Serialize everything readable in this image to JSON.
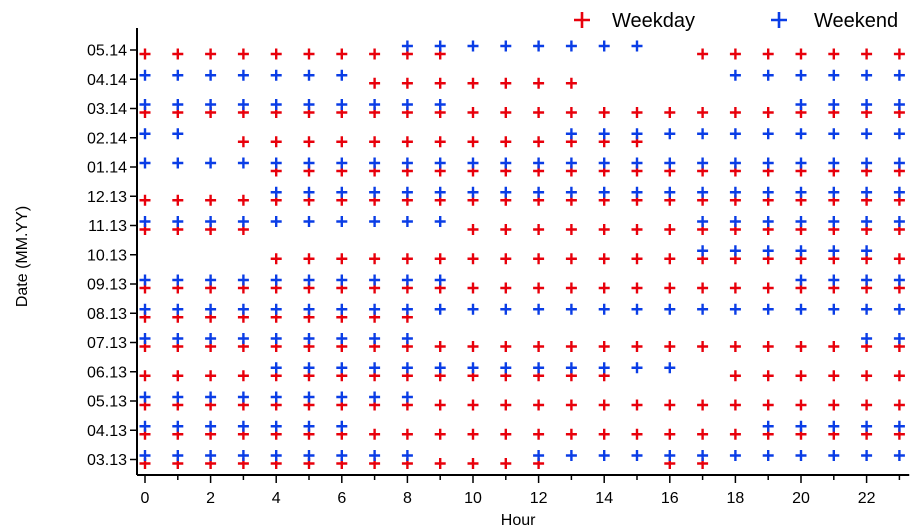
{
  "chart_data": {
    "type": "scatter",
    "title": "",
    "xlabel": "Hour",
    "ylabel": "Date (MM.YY)",
    "xlim": [
      -0.3,
      23.3
    ],
    "x_ticks": [
      0,
      2,
      4,
      6,
      8,
      10,
      12,
      14,
      16,
      18,
      20,
      22
    ],
    "categories": [
      "03.13",
      "04.13",
      "05.13",
      "06.13",
      "07.13",
      "08.13",
      "09.13",
      "10.13",
      "11.13",
      "12.13",
      "01.14",
      "02.14",
      "03.14",
      "04.14",
      "05.14"
    ],
    "legend": {
      "position": "top-right",
      "entries": [
        "Weekday",
        "Weekend"
      ]
    },
    "grid": false,
    "colors": {
      "Weekday": "#e8000b",
      "Weekend": "#0a3de6"
    },
    "series": [
      {
        "name": "Weekday",
        "marker": "+",
        "rows": [
          {
            "date": "03.13",
            "x": [
              0,
              1,
              2,
              3,
              4,
              5,
              6,
              7,
              8,
              9,
              10,
              11,
              12,
              16,
              17
            ]
          },
          {
            "date": "04.13",
            "x": [
              0,
              1,
              2,
              3,
              4,
              5,
              6,
              7,
              8,
              9,
              10,
              11,
              12,
              13,
              14,
              15,
              16,
              17,
              18,
              19,
              20,
              21,
              22,
              23
            ]
          },
          {
            "date": "05.13",
            "x": [
              0,
              1,
              2,
              3,
              4,
              5,
              6,
              7,
              8,
              9,
              10,
              11,
              12,
              13,
              14,
              15,
              16,
              17,
              18,
              19,
              20,
              21,
              22,
              23
            ]
          },
          {
            "date": "06.13",
            "x": [
              0,
              1,
              2,
              3,
              4,
              5,
              6,
              7,
              8,
              9,
              10,
              11,
              12,
              13,
              14,
              18,
              19,
              20,
              21,
              22,
              23
            ]
          },
          {
            "date": "07.13",
            "x": [
              0,
              1,
              2,
              3,
              4,
              5,
              6,
              7,
              8,
              9,
              10,
              11,
              12,
              13,
              14,
              15,
              16,
              17,
              18,
              19,
              20,
              21,
              22,
              23
            ]
          },
          {
            "date": "08.13",
            "x": [
              0,
              1,
              2,
              3,
              4,
              5,
              6,
              7,
              8
            ]
          },
          {
            "date": "09.13",
            "x": [
              0,
              1,
              2,
              3,
              4,
              5,
              6,
              7,
              8,
              9,
              10,
              11,
              12,
              13,
              14,
              15,
              16,
              17,
              18,
              19,
              20,
              21,
              22,
              23
            ]
          },
          {
            "date": "10.13",
            "x": [
              4,
              5,
              6,
              7,
              8,
              9,
              10,
              11,
              12,
              13,
              14,
              15,
              16,
              17,
              18,
              19,
              20,
              21,
              22,
              23
            ]
          },
          {
            "date": "11.13",
            "x": [
              0,
              1,
              2,
              3,
              10,
              11,
              12,
              13,
              14,
              15,
              16,
              17,
              18,
              19,
              20,
              21,
              22,
              23
            ]
          },
          {
            "date": "12.13",
            "x": [
              0,
              1,
              2,
              3,
              4,
              5,
              6,
              7,
              8,
              9,
              10,
              11,
              12,
              13,
              14,
              15,
              16,
              17,
              18,
              19,
              20,
              21,
              22,
              23
            ]
          },
          {
            "date": "01.14",
            "x": [
              4,
              5,
              6,
              7,
              8,
              9,
              10,
              11,
              12,
              13,
              14,
              15,
              16,
              17,
              18,
              19,
              20,
              21,
              22,
              23
            ]
          },
          {
            "date": "02.14",
            "x": [
              3,
              4,
              5,
              6,
              7,
              8,
              9,
              10,
              11,
              12,
              13,
              14,
              15
            ]
          },
          {
            "date": "03.14",
            "x": [
              0,
              1,
              2,
              3,
              4,
              5,
              6,
              7,
              8,
              9,
              10,
              11,
              12,
              13,
              14,
              15,
              16,
              17,
              18,
              19,
              20,
              21,
              22,
              23
            ]
          },
          {
            "date": "04.14",
            "x": [
              7,
              8,
              9,
              10,
              11,
              12,
              13
            ]
          },
          {
            "date": "05.14",
            "x": [
              0,
              1,
              2,
              3,
              4,
              5,
              6,
              7,
              8,
              9,
              17,
              18,
              19,
              20,
              21,
              22,
              23
            ]
          }
        ]
      },
      {
        "name": "Weekend",
        "marker": "+",
        "rows": [
          {
            "date": "03.13",
            "x": [
              0,
              1,
              2,
              3,
              4,
              5,
              6,
              7,
              8,
              12,
              13,
              14,
              15,
              16,
              17,
              18,
              19,
              20,
              21,
              22,
              23
            ]
          },
          {
            "date": "04.13",
            "x": [
              0,
              1,
              2,
              3,
              4,
              5,
              6,
              19,
              20,
              21,
              22,
              23
            ]
          },
          {
            "date": "05.13",
            "x": [
              0,
              1,
              2,
              3,
              4,
              5,
              6,
              7,
              8
            ]
          },
          {
            "date": "06.13",
            "x": [
              4,
              5,
              6,
              7,
              8,
              9,
              10,
              11,
              12,
              13,
              14,
              15,
              16
            ]
          },
          {
            "date": "07.13",
            "x": [
              0,
              1,
              2,
              3,
              4,
              5,
              6,
              7,
              8,
              22,
              23
            ]
          },
          {
            "date": "08.13",
            "x": [
              0,
              1,
              2,
              3,
              4,
              5,
              6,
              7,
              8,
              9,
              10,
              11,
              12,
              13,
              14,
              15,
              16,
              17,
              18,
              19,
              20,
              21,
              22,
              23
            ]
          },
          {
            "date": "09.13",
            "x": [
              0,
              1,
              2,
              3,
              4,
              5,
              6,
              7,
              8,
              9,
              20,
              21,
              22,
              23
            ]
          },
          {
            "date": "10.13",
            "x": [
              17,
              18,
              19,
              20,
              21,
              22
            ]
          },
          {
            "date": "11.13",
            "x": [
              0,
              1,
              2,
              3,
              4,
              5,
              6,
              7,
              8,
              9,
              17,
              18,
              19,
              20,
              21,
              22,
              23
            ]
          },
          {
            "date": "12.13",
            "x": [
              4,
              5,
              6,
              7,
              8,
              9,
              10,
              11,
              12,
              13,
              14,
              15,
              16,
              17,
              18,
              19,
              20,
              21,
              22,
              23
            ]
          },
          {
            "date": "01.14",
            "x": [
              0,
              1,
              2,
              3,
              4,
              5,
              6,
              7,
              8,
              9,
              10,
              11,
              12,
              13,
              14,
              15,
              16,
              17,
              18,
              19,
              20,
              21,
              22,
              23
            ]
          },
          {
            "date": "02.14",
            "x": [
              0,
              1,
              13,
              14,
              15,
              16,
              17,
              18,
              19,
              20,
              21,
              22,
              23
            ]
          },
          {
            "date": "03.14",
            "x": [
              0,
              1,
              2,
              3,
              4,
              5,
              6,
              7,
              8,
              9,
              20,
              21,
              22,
              23
            ]
          },
          {
            "date": "04.14",
            "x": [
              0,
              1,
              2,
              3,
              4,
              5,
              6,
              18,
              19,
              20,
              21,
              22,
              23
            ]
          },
          {
            "date": "05.14",
            "x": [
              8,
              9,
              10,
              11,
              12,
              13,
              14,
              15
            ]
          }
        ]
      }
    ]
  }
}
